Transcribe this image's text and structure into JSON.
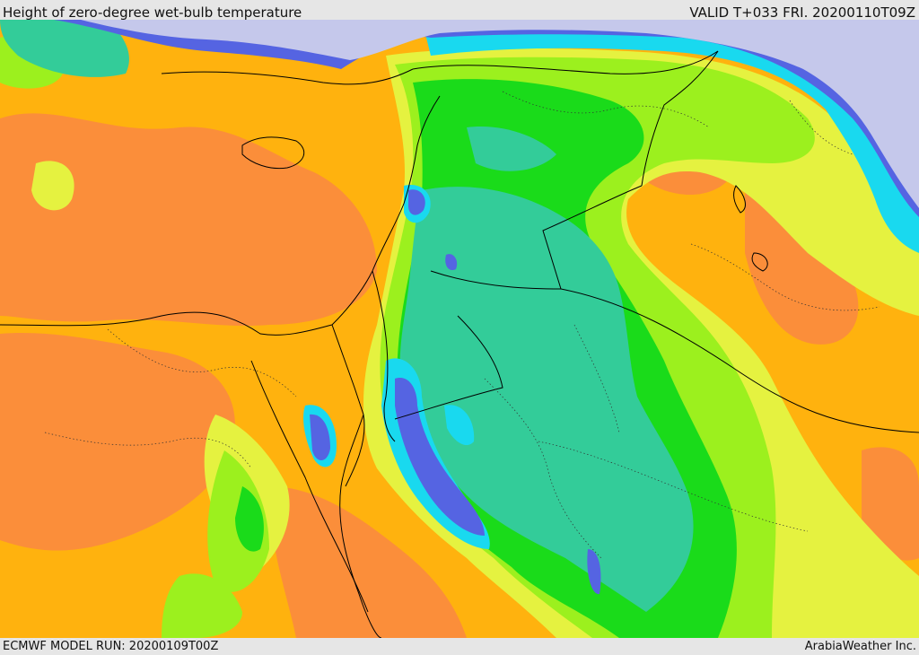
{
  "header": {
    "title": "Height of zero-degree wet-bulb temperature",
    "valid": "VALID T+033 FRI. 20200110T09Z"
  },
  "footer": {
    "model_run": "ECMWF MODEL RUN: 20200109T00Z",
    "credit": "ArabiaWeather Inc."
  },
  "palette": {
    "lavender": "#c5c8eb",
    "blue": "#5564e2",
    "cyan": "#19d9ef",
    "teal": "#33cc99",
    "green": "#1adb1a",
    "lime": "#9cf01e",
    "yellow": "#e5f240",
    "amber": "#ffb20e",
    "orange": "#fb8e3a",
    "borders": "#000000"
  }
}
